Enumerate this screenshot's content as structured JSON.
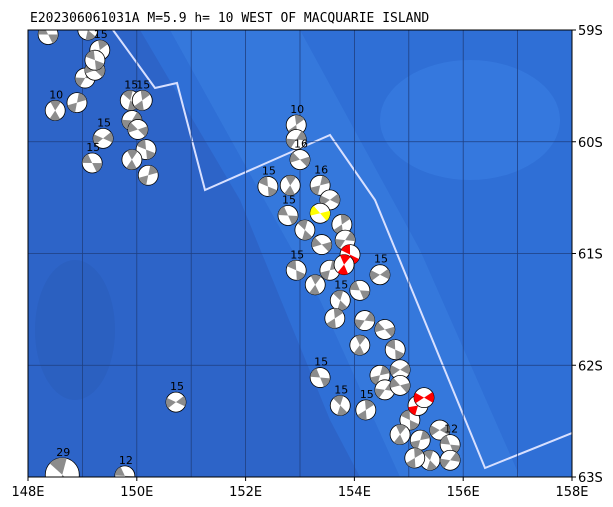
{
  "map": {
    "title": "E202306061031A M=5.9 h= 10 WEST OF MACQUARIE ISLAND",
    "xlim": [
      148,
      158
    ],
    "ylim": [
      -63,
      -59
    ],
    "xticks": [
      {
        "value": 148,
        "label": "148E"
      },
      {
        "value": 150,
        "label": "150E"
      },
      {
        "value": 152,
        "label": "152E"
      },
      {
        "value": 154,
        "label": "154E"
      },
      {
        "value": 156,
        "label": "156E"
      },
      {
        "value": 158,
        "label": "158E"
      }
    ],
    "yticks": [
      {
        "value": -59,
        "label": "59S"
      },
      {
        "value": -60,
        "label": "60S"
      },
      {
        "value": -61,
        "label": "61S"
      },
      {
        "value": -62,
        "label": "62S"
      },
      {
        "value": -63,
        "label": "63S"
      }
    ],
    "grid": true,
    "colors": {
      "default": "#8c8c8c",
      "main": "#ffff00",
      "recent": "#ff0000"
    },
    "events": [
      {
        "lon": 148.37,
        "lat": -59.04,
        "depth": 15
      },
      {
        "lon": 149.1,
        "lat": -59.0,
        "depth": null
      },
      {
        "lon": 149.32,
        "lat": -59.18,
        "depth": 15
      },
      {
        "lon": 149.05,
        "lat": -59.43,
        "depth": null
      },
      {
        "lon": 149.23,
        "lat": -59.36,
        "depth": null
      },
      {
        "lon": 149.23,
        "lat": -59.27,
        "depth": null
      },
      {
        "lon": 148.5,
        "lat": -59.72,
        "depth": 10
      },
      {
        "lon": 148.9,
        "lat": -59.65,
        "depth": null
      },
      {
        "lon": 149.38,
        "lat": -59.97,
        "depth": 15
      },
      {
        "lon": 149.18,
        "lat": -60.19,
        "depth": 15
      },
      {
        "lon": 149.88,
        "lat": -59.63,
        "depth": 15
      },
      {
        "lon": 150.1,
        "lat": -59.63,
        "depth": 15
      },
      {
        "lon": 149.91,
        "lat": -59.81,
        "depth": null
      },
      {
        "lon": 150.02,
        "lat": -59.89,
        "depth": null
      },
      {
        "lon": 150.17,
        "lat": -60.07,
        "depth": null
      },
      {
        "lon": 149.91,
        "lat": -60.16,
        "depth": null
      },
      {
        "lon": 150.21,
        "lat": -60.3,
        "depth": null
      },
      {
        "lon": 150.72,
        "lat": -62.33,
        "depth": 15
      },
      {
        "lon": 149.78,
        "lat": -62.99,
        "depth": 12
      },
      {
        "lon": 148.63,
        "lat": -62.98,
        "depth": 29,
        "big": true
      },
      {
        "lon": 152.93,
        "lat": -59.85,
        "depth": 10
      },
      {
        "lon": 152.93,
        "lat": -59.98,
        "depth": null
      },
      {
        "lon": 153.0,
        "lat": -60.16,
        "depth": 16
      },
      {
        "lon": 152.41,
        "lat": -60.4,
        "depth": 15
      },
      {
        "lon": 152.82,
        "lat": -60.39,
        "depth": null
      },
      {
        "lon": 153.37,
        "lat": -60.39,
        "depth": 16
      },
      {
        "lon": 153.55,
        "lat": -60.52,
        "depth": null
      },
      {
        "lon": 152.78,
        "lat": -60.66,
        "depth": 15
      },
      {
        "lon": 153.09,
        "lat": -60.79,
        "depth": null
      },
      {
        "lon": 153.77,
        "lat": -60.74,
        "depth": null
      },
      {
        "lon": 153.83,
        "lat": -60.88,
        "depth": null
      },
      {
        "lon": 153.4,
        "lat": -60.92,
        "depth": null
      },
      {
        "lon": 152.93,
        "lat": -61.15,
        "depth": 15
      },
      {
        "lon": 153.28,
        "lat": -61.28,
        "depth": null
      },
      {
        "lon": 153.55,
        "lat": -61.15,
        "depth": null
      },
      {
        "lon": 154.47,
        "lat": -61.19,
        "depth": 15
      },
      {
        "lon": 154.1,
        "lat": -61.33,
        "depth": null
      },
      {
        "lon": 153.74,
        "lat": -61.42,
        "depth": 15
      },
      {
        "lon": 153.64,
        "lat": -61.58,
        "depth": null
      },
      {
        "lon": 154.19,
        "lat": -61.6,
        "depth": null
      },
      {
        "lon": 154.56,
        "lat": -61.68,
        "depth": null
      },
      {
        "lon": 154.75,
        "lat": -61.86,
        "depth": null
      },
      {
        "lon": 154.1,
        "lat": -61.82,
        "depth": null
      },
      {
        "lon": 154.47,
        "lat": -62.09,
        "depth": null
      },
      {
        "lon": 154.84,
        "lat": -62.04,
        "depth": null
      },
      {
        "lon": 153.37,
        "lat": -62.11,
        "depth": 15
      },
      {
        "lon": 153.74,
        "lat": -62.36,
        "depth": 15
      },
      {
        "lon": 154.21,
        "lat": -62.4,
        "depth": 15
      },
      {
        "lon": 154.56,
        "lat": -62.22,
        "depth": null
      },
      {
        "lon": 154.84,
        "lat": -62.18,
        "depth": null
      },
      {
        "lon": 155.02,
        "lat": -62.49,
        "depth": null
      },
      {
        "lon": 154.84,
        "lat": -62.62,
        "depth": null
      },
      {
        "lon": 155.21,
        "lat": -62.67,
        "depth": null
      },
      {
        "lon": 155.57,
        "lat": -62.58,
        "depth": null
      },
      {
        "lon": 155.76,
        "lat": -62.71,
        "depth": 12
      },
      {
        "lon": 155.39,
        "lat": -62.85,
        "depth": null
      },
      {
        "lon": 155.11,
        "lat": -62.83,
        "depth": null
      },
      {
        "lon": 155.76,
        "lat": -62.85,
        "depth": null
      },
      {
        "lon": 153.37,
        "lat": -60.64,
        "depth": null,
        "kind": "main"
      },
      {
        "lon": 153.92,
        "lat": -61.01,
        "depth": null,
        "kind": "recent"
      },
      {
        "lon": 153.81,
        "lat": -61.1,
        "depth": null,
        "kind": "recent"
      },
      {
        "lon": 155.17,
        "lat": -62.36,
        "depth": null,
        "kind": "recent"
      },
      {
        "lon": 155.28,
        "lat": -62.29,
        "depth": null,
        "kind": "recent"
      }
    ]
  }
}
